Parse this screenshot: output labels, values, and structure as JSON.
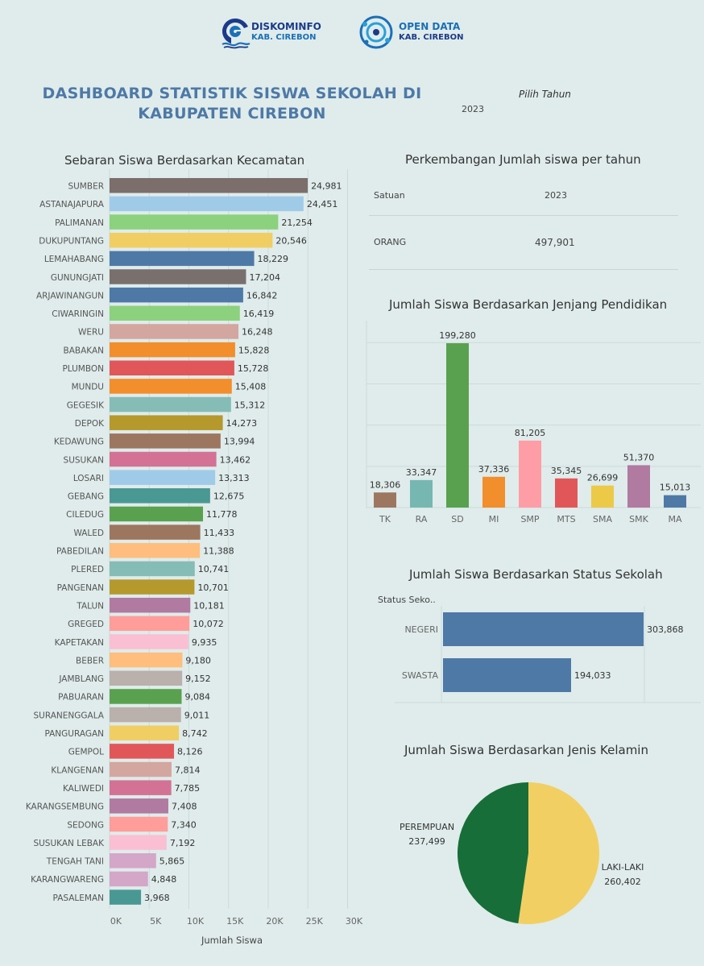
{
  "header": {
    "logo1": {
      "line1": "DISKOMINFO",
      "line2": "KAB. CIREBON"
    },
    "logo2": {
      "line1": "OPEN DATA",
      "line2": "KAB. CIREBON"
    },
    "title_line1": "DASHBOARD STATISTIK SISWA SEKOLAH DI",
    "title_line2": "KABUPATEN CIREBON",
    "filter_label": "Pilih Tahun",
    "filter_value": "2023"
  },
  "colors": {
    "background": "#dfeceb",
    "title": "#4e79a7",
    "status_bar": "#4e79a7",
    "gender_female": "#176e38",
    "gender_male": "#f2cf63"
  },
  "chart_data": [
    {
      "id": "kecamatan",
      "type": "bar",
      "orientation": "horizontal",
      "title": "Sebaran Siswa Berdasarkan Kecamatan",
      "xlabel": "Jumlah Siswa",
      "xlim": [
        0,
        30000
      ],
      "x_ticks": [
        "0K",
        "5K",
        "10K",
        "15K",
        "20K",
        "25K",
        "30K"
      ],
      "categories": [
        "SUMBER",
        "ASTANAJAPURA",
        "PALIMANAN",
        "DUKUPUNTANG",
        "LEMAHABANG",
        "GUNUNGJATI",
        "ARJAWINANGUN",
        "CIWARINGIN",
        "WERU",
        "BABAKAN",
        "PLUMBON",
        "MUNDU",
        "GEGESIK",
        "DEPOK",
        "KEDAWUNG",
        "SUSUKAN",
        "LOSARI",
        "GEBANG",
        "CILEDUG",
        "WALED",
        "PABEDILAN",
        "PLERED",
        "PANGENAN",
        "TALUN",
        "GREGED",
        "KAPETAKAN",
        "BEBER",
        "JAMBLANG",
        "PABUARAN",
        "SURANENGGALA",
        "PANGURAGAN",
        "GEMPOL",
        "KLANGENAN",
        "KALIWEDI",
        "KARANGSEMBUNG",
        "SEDONG",
        "SUSUKAN LEBAK",
        "TENGAH TANI",
        "KARANGWARENG",
        "PASALEMAN"
      ],
      "values": [
        24981,
        24451,
        21254,
        20546,
        18229,
        17204,
        16842,
        16419,
        16248,
        15828,
        15728,
        15408,
        15312,
        14273,
        13994,
        13462,
        13313,
        12675,
        11778,
        11433,
        11388,
        10741,
        10701,
        10181,
        10072,
        9935,
        9180,
        9152,
        9084,
        9011,
        8742,
        8126,
        7814,
        7785,
        7408,
        7340,
        7192,
        5865,
        4848,
        3968
      ],
      "value_labels": [
        "24,981",
        "24,451",
        "21,254",
        "20,546",
        "18,229",
        "17,204",
        "16,842",
        "16,419",
        "16,248",
        "15,828",
        "15,728",
        "15,408",
        "15,312",
        "14,273",
        "13,994",
        "13,462",
        "13,313",
        "12,675",
        "11,778",
        "11,433",
        "11,388",
        "10,741",
        "10,701",
        "10,181",
        "10,072",
        "9,935",
        "9,180",
        "9,152",
        "9,084",
        "9,011",
        "8,742",
        "8,126",
        "7,814",
        "7,785",
        "7,408",
        "7,340",
        "7,192",
        "5,865",
        "4,848",
        "3,968"
      ],
      "colors": [
        "#7b6e6b",
        "#a0cbe8",
        "#8cd17d",
        "#f1ce63",
        "#4e79a7",
        "#79706e",
        "#4e79a7",
        "#8cd17d",
        "#d4a6a0",
        "#f28e2b",
        "#e15759",
        "#f28e2b",
        "#86bcb6",
        "#b6992d",
        "#9d7660",
        "#d37295",
        "#a0cbe8",
        "#499894",
        "#59a14f",
        "#9d7660",
        "#ffbe7d",
        "#86bcb6",
        "#b6992d",
        "#b07aa1",
        "#ff9d9a",
        "#fabfd2",
        "#ffbe7d",
        "#bab0ac",
        "#59a14f",
        "#bab0ac",
        "#f1ce63",
        "#e15759",
        "#d4a6a0",
        "#d37295",
        "#b07aa1",
        "#ff9d9a",
        "#fabfd2",
        "#d4a6c8",
        "#d4a6c8",
        "#499894"
      ]
    },
    {
      "id": "tahun",
      "type": "table",
      "title": "Perkembangan Jumlah siswa per tahun",
      "columns": [
        "Satuan",
        "2023"
      ],
      "rows": [
        [
          "ORANG",
          "497,901"
        ]
      ]
    },
    {
      "id": "jenjang",
      "type": "bar",
      "title": "Jumlah Siswa Berdasarkan Jenjang Pendidikan",
      "categories": [
        "TK",
        "RA",
        "SD",
        "MI",
        "SMP",
        "MTS",
        "SMA",
        "SMK",
        "MA"
      ],
      "values": [
        18306,
        33347,
        199280,
        37336,
        81205,
        35345,
        26699,
        51370,
        15013
      ],
      "value_labels": [
        "18,306",
        "33,347",
        "199,280",
        "37,336",
        "81,205",
        "35,345",
        "26,699",
        "51,370",
        "15,013"
      ],
      "colors": [
        "#9d7660",
        "#76b7b2",
        "#59a14f",
        "#f28e2b",
        "#ff9da7",
        "#e15759",
        "#edc948",
        "#b07aa1",
        "#4e79a7"
      ],
      "ylim": [
        0,
        220000
      ],
      "grid": true
    },
    {
      "id": "status",
      "type": "bar",
      "orientation": "horizontal",
      "title": "Jumlah Siswa Berdasarkan Status Sekolah",
      "header_label": "Status Seko..",
      "categories": [
        "NEGERI",
        "SWASTA"
      ],
      "values": [
        303868,
        194033
      ],
      "value_labels": [
        "303,868",
        "194,033"
      ],
      "xlim": [
        0,
        303868
      ]
    },
    {
      "id": "gender",
      "type": "pie",
      "title": "Jumlah Siswa Berdasarkan Jenis Kelamin",
      "categories": [
        "PEREMPUAN",
        "LAKI-LAKI"
      ],
      "values": [
        237499,
        260402
      ],
      "value_labels": [
        "237,499",
        "260,402"
      ]
    }
  ]
}
